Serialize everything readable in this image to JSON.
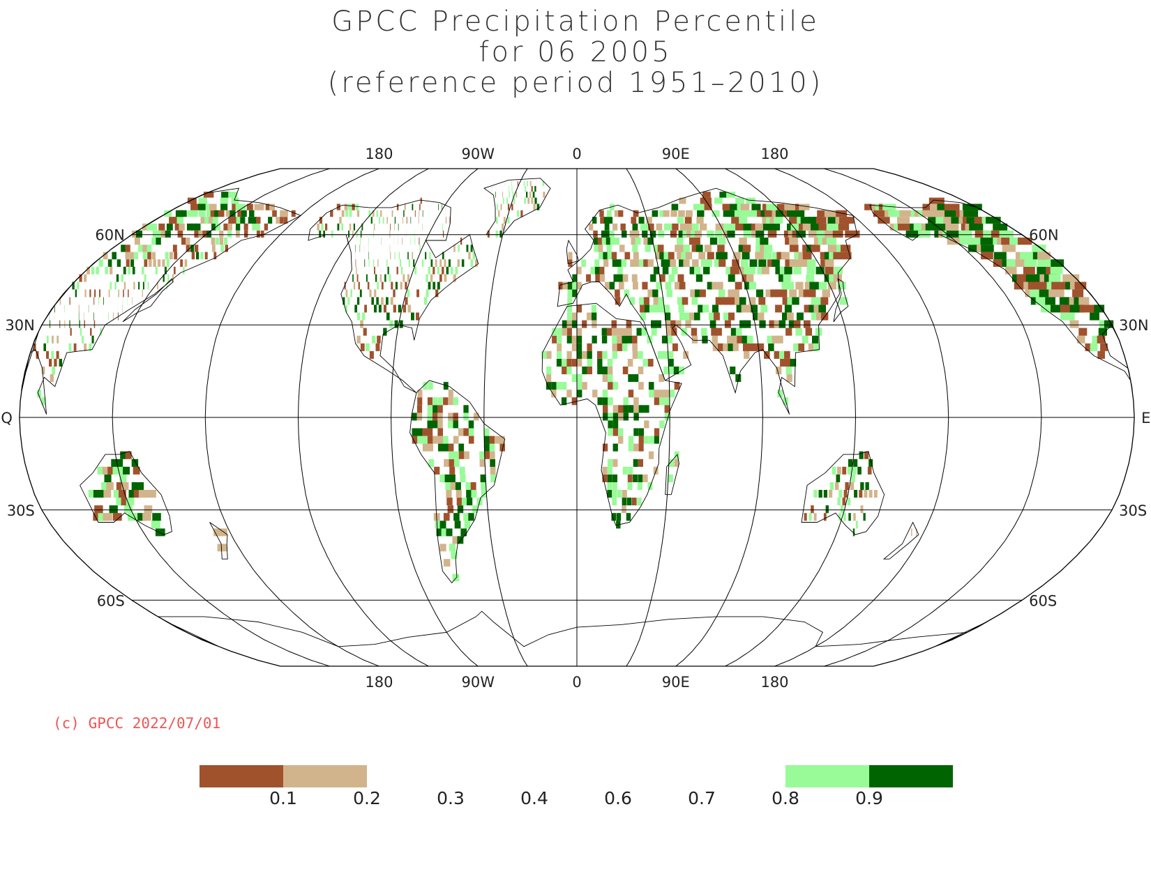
{
  "title": {
    "line1": "GPCC Precipitation Percentile",
    "line2": "for 06 2005",
    "line3": "(reference period 1951–2010)"
  },
  "map": {
    "projection": "Robinson",
    "lon_top_labels": [
      "180",
      "90W",
      "0",
      "90E",
      "180"
    ],
    "lon_bottom_labels": [
      "180",
      "90W",
      "0",
      "90E",
      "180"
    ],
    "lat_labels": [
      "60N",
      "30N",
      "EQ",
      "30S",
      "60S"
    ],
    "colors": {
      "very_dry": "#a0522d",
      "dry": "#d2b48c",
      "wet": "#98fb98",
      "very_wet": "#006400",
      "graticule": "#000000"
    }
  },
  "copyright": "(c) GPCC 2022/07/01",
  "colorbar": {
    "thresholds": [
      "0.1",
      "0.2",
      "0.3",
      "0.4",
      "0.6",
      "0.7",
      "0.8",
      "0.9"
    ],
    "colored_classes": [
      {
        "range": "<0.1",
        "color": "#a0522d"
      },
      {
        "range": "0.1-0.2",
        "color": "#d2b48c"
      },
      {
        "range": "0.8-0.9",
        "color": "#98fb98"
      },
      {
        "range": ">0.9",
        "color": "#006400"
      }
    ]
  }
}
